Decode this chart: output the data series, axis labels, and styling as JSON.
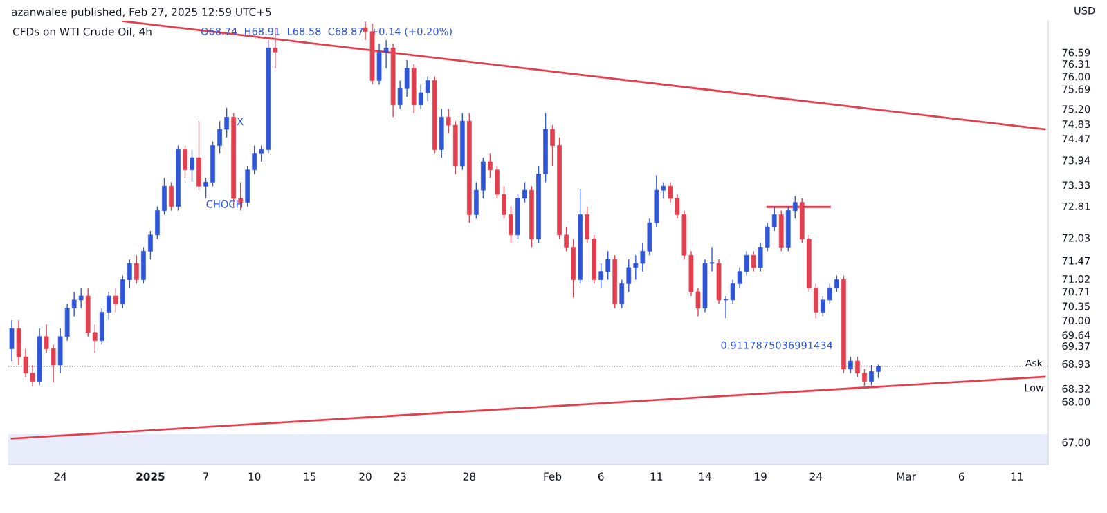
{
  "chart_data": {
    "type": "candlestick",
    "title": "CFDs on WTI Crude Oil, 4h",
    "subtitle": "azanwalee published, Feb 27, 2025 12:59 UTC+5",
    "ylabel": "USD",
    "categories": [
      null,
      null,
      null,
      null,
      null,
      null,
      null,
      "24",
      null,
      null,
      null,
      null,
      null,
      null,
      null,
      null,
      null,
      null,
      null,
      null,
      "2025",
      null,
      null,
      null,
      null,
      null,
      null,
      null,
      "7",
      null,
      null,
      null,
      null,
      null,
      null,
      "10",
      null,
      null,
      null,
      null,
      null,
      null,
      null,
      "15",
      null,
      null,
      null,
      null,
      null,
      null,
      null,
      "20",
      null,
      null,
      null,
      null,
      "23",
      null,
      null,
      null,
      null,
      null,
      null,
      null,
      null,
      null,
      "28",
      null,
      null,
      null,
      null,
      null,
      null,
      null,
      null,
      null,
      null,
      null,
      "Feb",
      null,
      null,
      null,
      null,
      null,
      null,
      "6",
      null,
      null,
      null,
      null,
      null,
      null,
      null,
      "11",
      null,
      null,
      null,
      null,
      null,
      null,
      "14",
      null,
      null,
      null,
      null,
      null,
      null,
      null,
      "19",
      null,
      null,
      null,
      null,
      null,
      null,
      null,
      "24",
      null,
      null,
      null,
      null,
      null,
      null,
      null,
      null,
      null,
      null,
      null,
      null,
      "Mar",
      null,
      null,
      null,
      null,
      null,
      null,
      null,
      "6",
      null,
      null,
      null,
      null,
      null,
      null,
      null,
      "11",
      null,
      null,
      null,
      null
    ],
    "ohlc": [
      [
        69.3,
        70.0,
        69.0,
        69.8
      ],
      [
        69.8,
        70.0,
        68.9,
        69.1
      ],
      [
        69.1,
        69.3,
        68.6,
        68.7
      ],
      [
        68.7,
        68.9,
        68.37,
        68.5
      ],
      [
        68.5,
        69.8,
        68.4,
        69.6
      ],
      [
        69.6,
        69.9,
        69.2,
        69.3
      ],
      [
        69.3,
        69.4,
        68.48,
        68.9
      ],
      [
        68.9,
        69.8,
        68.7,
        69.6
      ],
      [
        69.6,
        70.4,
        69.5,
        70.3
      ],
      [
        70.3,
        70.7,
        70.1,
        70.5
      ],
      [
        70.5,
        70.8,
        70.3,
        70.6
      ],
      [
        70.6,
        70.8,
        69.6,
        69.7
      ],
      [
        69.7,
        69.9,
        69.2,
        69.5
      ],
      [
        69.5,
        70.3,
        69.4,
        70.2
      ],
      [
        70.2,
        70.7,
        70.0,
        70.6
      ],
      [
        70.6,
        70.8,
        70.2,
        70.4
      ],
      [
        70.4,
        71.1,
        70.3,
        71.0
      ],
      [
        71.0,
        71.5,
        70.8,
        71.4
      ],
      [
        71.4,
        71.6,
        70.9,
        71.0
      ],
      [
        71.0,
        71.8,
        70.9,
        71.7
      ],
      [
        71.7,
        72.2,
        71.5,
        72.1
      ],
      [
        72.1,
        72.8,
        72.0,
        72.7
      ],
      [
        72.7,
        73.5,
        72.6,
        73.3
      ],
      [
        73.3,
        73.4,
        72.7,
        72.8
      ],
      [
        72.8,
        74.3,
        72.7,
        74.2
      ],
      [
        74.2,
        74.3,
        73.5,
        73.7
      ],
      [
        73.7,
        74.2,
        73.4,
        74.0
      ],
      [
        74.0,
        74.9,
        73.2,
        73.3
      ],
      [
        73.3,
        73.5,
        73.0,
        73.4
      ],
      [
        73.4,
        74.4,
        73.3,
        74.3
      ],
      [
        74.3,
        74.9,
        74.1,
        74.7
      ],
      [
        74.7,
        75.23,
        74.5,
        75.0
      ],
      [
        75.0,
        75.1,
        72.8,
        73.0
      ],
      [
        73.0,
        73.4,
        72.7,
        72.9
      ],
      [
        72.9,
        73.8,
        72.8,
        73.7
      ],
      [
        73.7,
        74.3,
        73.6,
        74.1
      ],
      [
        74.1,
        74.3,
        73.9,
        74.2
      ],
      [
        74.2,
        76.9,
        74.1,
        76.7
      ],
      [
        76.7,
        77.2,
        76.2,
        76.6
      ],
      null,
      null,
      null,
      null,
      null,
      null,
      null,
      null,
      null,
      null,
      null,
      null,
      [
        77.2,
        77.35,
        76.9,
        77.1
      ],
      [
        77.1,
        77.3,
        75.8,
        75.9
      ],
      [
        75.9,
        76.8,
        75.8,
        76.6
      ],
      [
        76.6,
        76.9,
        76.2,
        76.7
      ],
      [
        76.7,
        76.8,
        75.0,
        75.3
      ],
      [
        75.3,
        75.9,
        75.2,
        75.7
      ],
      [
        75.7,
        76.4,
        75.5,
        76.2
      ],
      [
        76.2,
        76.3,
        75.1,
        75.3
      ],
      [
        75.3,
        75.8,
        75.2,
        75.6
      ],
      [
        75.6,
        76.0,
        75.4,
        75.9
      ],
      [
        75.9,
        76.0,
        74.1,
        74.2
      ],
      [
        74.2,
        75.2,
        74.0,
        75.0
      ],
      [
        75.0,
        75.2,
        74.6,
        74.8
      ],
      [
        74.8,
        74.9,
        73.6,
        73.8
      ],
      [
        73.8,
        75.1,
        73.7,
        74.9
      ],
      [
        74.9,
        75.1,
        72.4,
        72.6
      ],
      [
        72.6,
        73.4,
        72.5,
        73.2
      ],
      [
        73.2,
        74.0,
        73.0,
        73.9
      ],
      [
        73.9,
        74.1,
        73.5,
        73.7
      ],
      [
        73.7,
        73.8,
        73.0,
        73.1
      ],
      [
        73.1,
        73.3,
        72.5,
        72.6
      ],
      [
        72.6,
        72.8,
        71.9,
        72.1
      ],
      [
        72.1,
        73.1,
        72.0,
        73.0
      ],
      [
        73.0,
        73.4,
        72.9,
        73.2
      ],
      [
        73.2,
        73.3,
        71.8,
        72.0
      ],
      [
        72.0,
        73.8,
        71.9,
        73.6
      ],
      [
        73.6,
        75.1,
        73.4,
        74.7
      ],
      [
        74.7,
        74.8,
        73.8,
        74.3
      ],
      [
        74.3,
        74.5,
        72.0,
        72.1
      ],
      [
        72.1,
        72.3,
        71.7,
        71.8
      ],
      [
        71.8,
        72.0,
        70.56,
        71.0
      ],
      [
        71.0,
        73.23,
        70.9,
        72.6
      ],
      [
        72.6,
        72.8,
        71.9,
        72.0
      ],
      [
        72.0,
        72.1,
        70.9,
        71.0
      ],
      [
        71.0,
        71.4,
        70.8,
        71.2
      ],
      [
        71.2,
        71.7,
        71.0,
        71.5
      ],
      [
        71.5,
        71.6,
        70.3,
        70.4
      ],
      [
        70.4,
        71.0,
        70.3,
        70.9
      ],
      [
        70.9,
        71.5,
        70.7,
        71.3
      ],
      [
        71.3,
        71.6,
        71.0,
        71.4
      ],
      [
        71.4,
        71.9,
        71.2,
        71.7
      ],
      [
        71.7,
        72.5,
        71.6,
        72.4
      ],
      [
        72.4,
        73.57,
        72.3,
        73.2
      ],
      [
        73.2,
        73.4,
        73.0,
        73.3
      ],
      [
        73.3,
        73.4,
        72.9,
        73.0
      ],
      [
        73.0,
        73.1,
        72.5,
        72.6
      ],
      [
        72.6,
        72.7,
        71.5,
        71.6
      ],
      [
        71.6,
        71.7,
        70.6,
        70.7
      ],
      [
        70.7,
        70.8,
        70.1,
        70.3
      ],
      [
        70.3,
        71.5,
        70.2,
        71.4
      ],
      [
        71.4,
        71.8,
        71.2,
        71.4
      ],
      [
        71.4,
        71.5,
        70.4,
        70.5
      ],
      [
        70.5,
        70.6,
        70.05,
        70.5
      ],
      [
        70.5,
        71.0,
        70.4,
        70.9
      ],
      [
        70.9,
        71.3,
        70.8,
        71.2
      ],
      [
        71.2,
        71.7,
        71.1,
        71.6
      ],
      [
        71.6,
        71.7,
        71.2,
        71.3
      ],
      [
        71.3,
        71.9,
        71.2,
        71.8
      ],
      [
        71.8,
        72.4,
        71.7,
        72.3
      ],
      [
        72.3,
        72.8,
        72.2,
        72.6
      ],
      [
        72.6,
        72.7,
        71.7,
        71.8
      ],
      [
        71.8,
        72.8,
        71.7,
        72.7
      ],
      [
        72.7,
        73.06,
        72.5,
        72.9
      ],
      [
        72.9,
        73.0,
        71.9,
        72.0
      ],
      [
        72.0,
        72.1,
        70.7,
        70.8
      ],
      [
        70.8,
        70.9,
        70.05,
        70.2
      ],
      [
        70.2,
        70.6,
        70.1,
        70.5
      ],
      [
        70.5,
        70.9,
        70.4,
        70.8
      ],
      [
        70.8,
        71.1,
        70.7,
        71.0
      ],
      [
        71.0,
        71.1,
        68.7,
        68.8
      ],
      [
        68.8,
        69.1,
        68.7,
        69.0
      ],
      [
        69.0,
        69.1,
        68.6,
        68.7
      ],
      [
        68.7,
        68.8,
        68.39,
        68.5
      ],
      [
        68.5,
        68.9,
        68.4,
        68.74
      ],
      [
        68.74,
        68.91,
        68.58,
        68.87
      ],
      null,
      null,
      null,
      null,
      null,
      null,
      null,
      null,
      null,
      null,
      null,
      null,
      null,
      null,
      null,
      null,
      null,
      null,
      null,
      null,
      null,
      null,
      null,
      null
    ],
    "colors": [
      "#2f56d6",
      "#e2404f",
      "#e2404f",
      "#e2404f",
      "#2f56d6",
      "#e2404f",
      "#e2404f",
      "#2f56d6",
      "#2f56d6",
      "#2f56d6",
      "#2f56d6",
      "#e2404f",
      "#e2404f",
      "#2f56d6",
      "#2f56d6",
      "#e2404f",
      "#2f56d6",
      "#2f56d6",
      "#e2404f",
      "#2f56d6",
      "#2f56d6",
      "#2f56d6",
      "#2f56d6",
      "#e2404f",
      "#2f56d6",
      "#e2404f",
      "#2f56d6",
      "#e2404f",
      "#2f56d6",
      "#2f56d6",
      "#2f56d6",
      "#2f56d6",
      "#e2404f",
      "#e2404f",
      "#2f56d6",
      "#2f56d6",
      "#2f56d6",
      "#2f56d6",
      "#e2404f",
      null,
      null,
      null,
      null,
      null,
      null,
      null,
      null,
      null,
      null,
      null,
      null,
      "#e2404f",
      "#e2404f",
      "#2f56d6",
      "#2f56d6",
      "#e2404f",
      "#2f56d6",
      "#2f56d6",
      "#e2404f",
      "#2f56d6",
      "#2f56d6",
      "#e2404f",
      "#2f56d6",
      "#e2404f",
      "#e2404f",
      "#2f56d6",
      "#e2404f",
      "#2f56d6",
      "#2f56d6",
      "#e2404f",
      "#e2404f",
      "#e2404f",
      "#e2404f",
      "#2f56d6",
      "#2f56d6",
      "#e2404f",
      "#2f56d6",
      "#2f56d6",
      "#e2404f",
      "#e2404f",
      "#e2404f",
      "#e2404f",
      "#2f56d6",
      "#e2404f",
      "#e2404f",
      "#2f56d6",
      "#2f56d6",
      "#e2404f",
      "#2f56d6",
      "#2f56d6",
      "#2f56d6",
      "#2f56d6",
      "#2f56d6",
      "#2f56d6",
      "#2f56d6",
      "#e2404f",
      "#e2404f",
      "#e2404f",
      "#e2404f",
      "#e2404f",
      "#2f56d6",
      "#2f56d6",
      "#e2404f",
      "#2f56d6",
      "#2f56d6",
      "#2f56d6",
      "#2f56d6",
      "#e2404f",
      "#2f56d6",
      "#2f56d6",
      "#2f56d6",
      "#e2404f",
      "#2f56d6",
      "#2f56d6",
      "#e2404f",
      "#e2404f",
      "#e2404f",
      "#2f56d6",
      "#2f56d6",
      "#2f56d6",
      "#e2404f",
      "#2f56d6",
      "#e2404f",
      "#e2404f",
      "#2f56d6",
      "#2f56d6",
      null,
      null,
      null,
      null,
      null,
      null,
      null,
      null,
      null,
      null,
      null,
      null,
      null,
      null,
      null,
      null,
      null,
      null,
      null,
      null,
      null,
      null,
      null,
      null
    ],
    "series": [
      {
        "type": "line",
        "color": "#e2404f",
        "values": [
          null,
          null,
          null,
          null,
          null,
          null,
          null,
          null,
          null,
          null,
          null,
          null,
          null,
          null,
          null,
          null,
          77.36,
          null,
          null,
          null,
          null,
          null,
          null,
          null,
          null,
          null,
          null,
          null,
          null,
          null,
          null,
          null,
          null,
          null,
          null,
          null,
          null,
          null,
          null,
          null,
          null,
          null,
          null,
          null,
          null,
          null,
          null,
          null,
          null,
          null,
          null,
          null,
          null,
          null,
          null,
          null,
          null,
          null,
          null,
          null,
          null,
          null,
          null,
          null,
          null,
          null,
          null,
          null,
          null,
          null,
          null,
          null,
          null,
          null,
          null,
          null,
          null,
          null,
          null,
          null,
          null,
          null,
          null,
          null,
          null,
          null,
          null,
          null,
          null,
          null,
          null,
          null,
          null,
          null,
          null,
          null,
          null,
          null,
          null,
          null,
          null,
          null,
          null,
          null,
          null,
          null,
          null,
          null,
          null,
          null,
          null,
          null,
          null,
          null,
          null,
          null,
          null,
          null,
          null,
          null,
          null,
          null,
          null,
          null,
          null,
          null,
          null,
          null,
          null,
          null,
          null,
          null,
          null,
          null,
          null,
          null,
          null,
          null,
          null,
          null,
          null,
          null,
          null,
          null,
          null,
          null,
          null,
          null,
          null,
          74.7
        ]
      },
      {
        "type": "line",
        "color": "#e2404f",
        "values": [
          67.09,
          null,
          null,
          null,
          null,
          null,
          null,
          null,
          null,
          null,
          null,
          null,
          null,
          null,
          null,
          null,
          null,
          null,
          null,
          null,
          null,
          null,
          null,
          null,
          null,
          null,
          null,
          null,
          null,
          null,
          null,
          null,
          null,
          null,
          null,
          null,
          null,
          null,
          null,
          null,
          null,
          null,
          null,
          null,
          null,
          null,
          null,
          null,
          null,
          null,
          null,
          null,
          null,
          null,
          null,
          null,
          null,
          null,
          null,
          null,
          null,
          null,
          null,
          null,
          null,
          null,
          null,
          null,
          null,
          null,
          null,
          null,
          null,
          null,
          null,
          null,
          null,
          null,
          null,
          null,
          null,
          null,
          null,
          null,
          null,
          null,
          null,
          null,
          null,
          null,
          null,
          null,
          null,
          null,
          null,
          null,
          null,
          null,
          null,
          null,
          null,
          null,
          null,
          null,
          null,
          null,
          null,
          null,
          null,
          null,
          null,
          null,
          null,
          null,
          null,
          null,
          null,
          null,
          null,
          null,
          null,
          null,
          null,
          null,
          null,
          null,
          null,
          null,
          null,
          null,
          null,
          null,
          null,
          null,
          null,
          null,
          null,
          null,
          null,
          null,
          null,
          null,
          null,
          null,
          null,
          null,
          null,
          null,
          null,
          68.61
        ]
      },
      {
        "type": "line",
        "color": "#e2404f",
        "values": [
          null,
          null,
          null,
          null,
          null,
          null,
          null,
          null,
          null,
          null,
          null,
          null,
          null,
          null,
          null,
          null,
          null,
          null,
          null,
          null,
          null,
          null,
          null,
          null,
          null,
          null,
          null,
          null,
          null,
          null,
          null,
          null,
          null,
          null,
          null,
          null,
          null,
          null,
          null,
          null,
          null,
          null,
          null,
          null,
          null,
          null,
          null,
          null,
          null,
          null,
          null,
          null,
          null,
          null,
          null,
          null,
          null,
          null,
          null,
          null,
          null,
          null,
          null,
          null,
          null,
          null,
          null,
          null,
          null,
          null,
          null,
          null,
          null,
          null,
          null,
          null,
          null,
          null,
          null,
          null,
          null,
          null,
          null,
          null,
          null,
          null,
          null,
          null,
          null,
          null,
          null,
          null,
          null,
          null,
          null,
          null,
          null,
          null,
          null,
          null,
          null,
          null,
          null,
          null,
          null,
          null,
          null,
          null,
          null,
          72.79,
          null,
          null,
          null,
          null,
          null,
          null,
          null,
          null,
          72.79,
          null,
          null,
          null,
          null,
          null,
          null,
          null,
          null,
          null,
          null,
          null,
          null,
          null,
          null,
          null,
          null,
          null,
          null,
          null,
          null,
          null,
          null,
          null,
          null,
          null,
          null,
          null,
          null,
          null,
          null,
          null
        ]
      }
    ],
    "bands": [
      {
        "axis": "y",
        "from": 66.45,
        "to": 67.2,
        "color": "#e9edfb"
      }
    ],
    "ref_lines": [
      {
        "axis": "y",
        "value": 68.87,
        "line_style": "dotted",
        "color": "#9598a1"
      }
    ],
    "annotations": [
      "O68.74  H68.91  L68.58  C68.87  +0.14 (+0.20%)",
      "X",
      "CHOCH",
      "0.9117875036991434",
      {
        "text": "Ask",
        "y": 68.93
      },
      "Low"
    ],
    "ylim": [
      66.45,
      77.37
    ],
    "yticks": [
      {
        "value": 76.59,
        "label": "76.59"
      },
      {
        "value": 76.31,
        "label": "76.31"
      },
      {
        "value": 76,
        "label": "76.00"
      },
      {
        "value": 75.69,
        "label": "75.69"
      },
      {
        "value": 75.2,
        "label": "75.20"
      },
      {
        "value": 74.83,
        "label": "74.83"
      },
      {
        "value": 74.47,
        "label": "74.47"
      },
      {
        "value": 73.94,
        "label": "73.94"
      },
      {
        "value": 73.33,
        "label": "73.33"
      },
      {
        "value": 72.81,
        "label": "72.81"
      },
      {
        "value": 72.03,
        "label": "72.03"
      },
      {
        "value": 71.47,
        "label": "71.47"
      },
      {
        "value": 71.02,
        "label": "71.02"
      },
      {
        "value": 70.71,
        "label": "70.71"
      },
      {
        "value": 70.35,
        "label": "70.35"
      },
      {
        "value": 70,
        "label": "70.00"
      },
      {
        "value": 69.64,
        "label": "69.64"
      },
      {
        "value": 69.37,
        "label": "69.37"
      },
      {
        "value": 68.93,
        "label": "68.93"
      },
      {
        "value": 68.32,
        "label": "68.32"
      },
      {
        "value": 68,
        "label": "68.00"
      },
      {
        "value": 67,
        "label": "67.00"
      }
    ],
    "grid": false
  }
}
